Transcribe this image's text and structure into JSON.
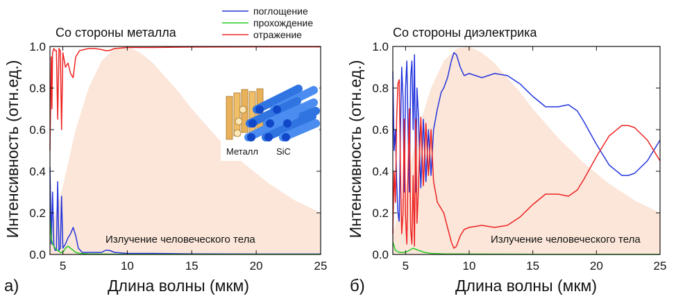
{
  "legend": {
    "items": [
      {
        "label": "поглощение",
        "color": "#2233dd"
      },
      {
        "label": "прохождение",
        "color": "#22cc22"
      },
      {
        "label": "отражение",
        "color": "#ee2222"
      }
    ]
  },
  "chart_data": [
    {
      "type": "line",
      "panel_label": "а)",
      "title": "Со стороны металла",
      "xlabel": "Длина волны (мкм)",
      "ylabel": "Интенсивность (отн.ед.)",
      "xlim": [
        4,
        25
      ],
      "ylim": [
        0,
        1
      ],
      "xticks": [
        "5",
        "10",
        "15",
        "20",
        "25"
      ],
      "yticks": [
        "0.0",
        "0.2",
        "0.4",
        "0.6",
        "0.8",
        "1.0"
      ],
      "annotation": "Излучение человеческого тела",
      "inset_labels": [
        "Металл",
        "SiC"
      ],
      "series": [
        {
          "name": "поглощение",
          "color": "#2233dd",
          "x": [
            4.0,
            4.1,
            4.2,
            4.3,
            4.4,
            4.5,
            4.6,
            4.7,
            4.8,
            4.9,
            5.0,
            5.2,
            5.4,
            5.6,
            5.8,
            6.0,
            6.2,
            6.5,
            7.0,
            7.5,
            8.0,
            8.3,
            8.6,
            9.0,
            10,
            12,
            15,
            20,
            25
          ],
          "y": [
            0.42,
            0.05,
            0.3,
            0.04,
            0.02,
            0.02,
            0.35,
            0.02,
            0.03,
            0.28,
            0.03,
            0.05,
            0.08,
            0.1,
            0.13,
            0.09,
            0.03,
            0.01,
            0.01,
            0.01,
            0.01,
            0.02,
            0.02,
            0.01,
            0.005,
            0.005,
            0.003,
            0.002,
            0.002
          ]
        },
        {
          "name": "прохождение",
          "color": "#22cc22",
          "x": [
            4.0,
            4.1,
            4.2,
            4.3,
            4.4,
            4.6,
            4.8,
            5.0,
            5.2,
            5.4,
            5.6,
            5.8,
            6.0,
            6.3,
            7.0,
            8.0,
            10,
            15,
            20,
            25
          ],
          "y": [
            0.18,
            0.08,
            0.05,
            0.04,
            0.03,
            0.02,
            0.01,
            0.01,
            0.03,
            0.04,
            0.03,
            0.02,
            0.01,
            0.005,
            0.003,
            0.002,
            0.001,
            0.001,
            0.001,
            0.001
          ]
        },
        {
          "name": "отражение",
          "color": "#ee2222",
          "x": [
            4.0,
            4.1,
            4.15,
            4.2,
            4.3,
            4.4,
            4.5,
            4.6,
            4.7,
            4.8,
            4.9,
            5.0,
            5.2,
            5.4,
            5.6,
            5.8,
            6.0,
            6.3,
            7.0,
            7.5,
            8.0,
            8.3,
            8.6,
            9.0,
            10,
            12,
            15,
            20,
            25
          ],
          "y": [
            0.5,
            0.95,
            0.7,
            0.97,
            0.99,
            0.98,
            0.98,
            0.65,
            0.99,
            0.98,
            0.6,
            0.97,
            0.9,
            0.92,
            0.87,
            0.85,
            0.95,
            0.98,
            0.99,
            0.99,
            0.985,
            0.98,
            0.98,
            0.99,
            0.995,
            0.995,
            0.997,
            0.998,
            0.998
          ]
        }
      ],
      "emission_band": {
        "x": [
          4,
          5,
          6,
          7,
          8,
          9,
          10,
          11,
          12,
          13,
          14,
          15,
          16,
          17,
          18,
          19,
          20,
          21,
          22,
          23,
          24,
          25
        ],
        "y": [
          0.1,
          0.33,
          0.6,
          0.8,
          0.93,
          0.99,
          1.0,
          0.97,
          0.92,
          0.85,
          0.78,
          0.7,
          0.63,
          0.56,
          0.5,
          0.44,
          0.39,
          0.34,
          0.3,
          0.26,
          0.23,
          0.2
        ],
        "color": "#fbe6d9"
      }
    },
    {
      "type": "line",
      "panel_label": "б)",
      "title": "Со стороны диэлектрика",
      "xlabel": "Длина волны (мкм)",
      "ylabel": "Интенсивность (отн.ед.)",
      "xlim": [
        4,
        25
      ],
      "ylim": [
        0,
        1
      ],
      "xticks": [
        "5",
        "10",
        "15",
        "20",
        "25"
      ],
      "yticks": [
        "0.0",
        "0.2",
        "0.4",
        "0.6",
        "0.8",
        "1.0"
      ],
      "annotation": "Излучение человеческого тела",
      "series": [
        {
          "name": "поглощение",
          "color": "#2233dd",
          "x": [
            4.0,
            4.1,
            4.2,
            4.3,
            4.4,
            4.5,
            4.6,
            4.7,
            4.8,
            4.9,
            5.0,
            5.1,
            5.2,
            5.3,
            5.4,
            5.5,
            5.6,
            5.7,
            5.8,
            5.9,
            6.0,
            6.2,
            6.4,
            6.6,
            6.8,
            7.0,
            7.2,
            7.5,
            7.8,
            8.0,
            8.3,
            8.6,
            8.8,
            9.0,
            9.3,
            9.6,
            10,
            11,
            12,
            13,
            14,
            15,
            16,
            17,
            17.8,
            18.5,
            19,
            20,
            21,
            22,
            22.5,
            23,
            24,
            25
          ],
          "y": [
            0.88,
            0.5,
            0.6,
            0.35,
            0.2,
            0.16,
            0.6,
            0.9,
            0.75,
            0.3,
            0.8,
            0.93,
            0.6,
            0.3,
            0.85,
            0.93,
            0.6,
            0.96,
            0.3,
            0.8,
            0.68,
            0.32,
            0.65,
            0.35,
            0.6,
            0.38,
            0.6,
            0.7,
            0.78,
            0.8,
            0.85,
            0.93,
            0.97,
            0.96,
            0.9,
            0.86,
            0.87,
            0.85,
            0.87,
            0.86,
            0.82,
            0.76,
            0.71,
            0.71,
            0.72,
            0.69,
            0.64,
            0.53,
            0.43,
            0.38,
            0.38,
            0.39,
            0.45,
            0.55
          ]
        },
        {
          "name": "прохождение",
          "color": "#22cc22",
          "x": [
            4.0,
            4.2,
            4.5,
            5.0,
            5.3,
            5.6,
            6.0,
            6.5,
            7.0,
            8.0,
            10,
            15,
            20,
            25
          ],
          "y": [
            0.06,
            0.02,
            0.01,
            0.01,
            0.02,
            0.03,
            0.02,
            0.01,
            0.005,
            0.003,
            0.002,
            0.001,
            0.001,
            0.001
          ]
        },
        {
          "name": "отражение",
          "color": "#ee2222",
          "x": [
            4.0,
            4.1,
            4.2,
            4.3,
            4.4,
            4.5,
            4.6,
            4.7,
            4.8,
            4.9,
            5.0,
            5.1,
            5.2,
            5.3,
            5.4,
            5.5,
            5.6,
            5.7,
            5.8,
            5.9,
            6.0,
            6.2,
            6.4,
            6.6,
            6.8,
            7.0,
            7.2,
            7.5,
            7.8,
            8.0,
            8.3,
            8.6,
            8.8,
            9.0,
            9.3,
            9.6,
            10,
            11,
            12,
            13,
            14,
            15,
            16,
            17,
            17.8,
            18.5,
            19,
            20,
            21,
            22,
            22.5,
            23,
            24,
            25
          ],
          "y": [
            0.1,
            0.4,
            0.25,
            0.65,
            0.82,
            0.84,
            0.4,
            0.1,
            0.2,
            0.65,
            0.18,
            0.05,
            0.4,
            0.7,
            0.12,
            0.05,
            0.38,
            0.04,
            0.65,
            0.15,
            0.3,
            0.66,
            0.33,
            0.63,
            0.38,
            0.6,
            0.35,
            0.25,
            0.22,
            0.2,
            0.13,
            0.06,
            0.03,
            0.04,
            0.09,
            0.12,
            0.13,
            0.14,
            0.13,
            0.14,
            0.18,
            0.24,
            0.29,
            0.29,
            0.28,
            0.31,
            0.36,
            0.47,
            0.57,
            0.62,
            0.62,
            0.61,
            0.55,
            0.45
          ]
        }
      ],
      "emission_band": {
        "x": [
          4,
          5,
          6,
          7,
          8,
          9,
          10,
          11,
          12,
          13,
          14,
          15,
          16,
          17,
          18,
          19,
          20,
          21,
          22,
          23,
          24,
          25
        ],
        "y": [
          0.1,
          0.33,
          0.6,
          0.8,
          0.93,
          0.99,
          1.0,
          0.97,
          0.92,
          0.85,
          0.78,
          0.7,
          0.63,
          0.56,
          0.5,
          0.44,
          0.39,
          0.34,
          0.3,
          0.26,
          0.23,
          0.2
        ],
        "color": "#fbe6d9"
      }
    }
  ]
}
